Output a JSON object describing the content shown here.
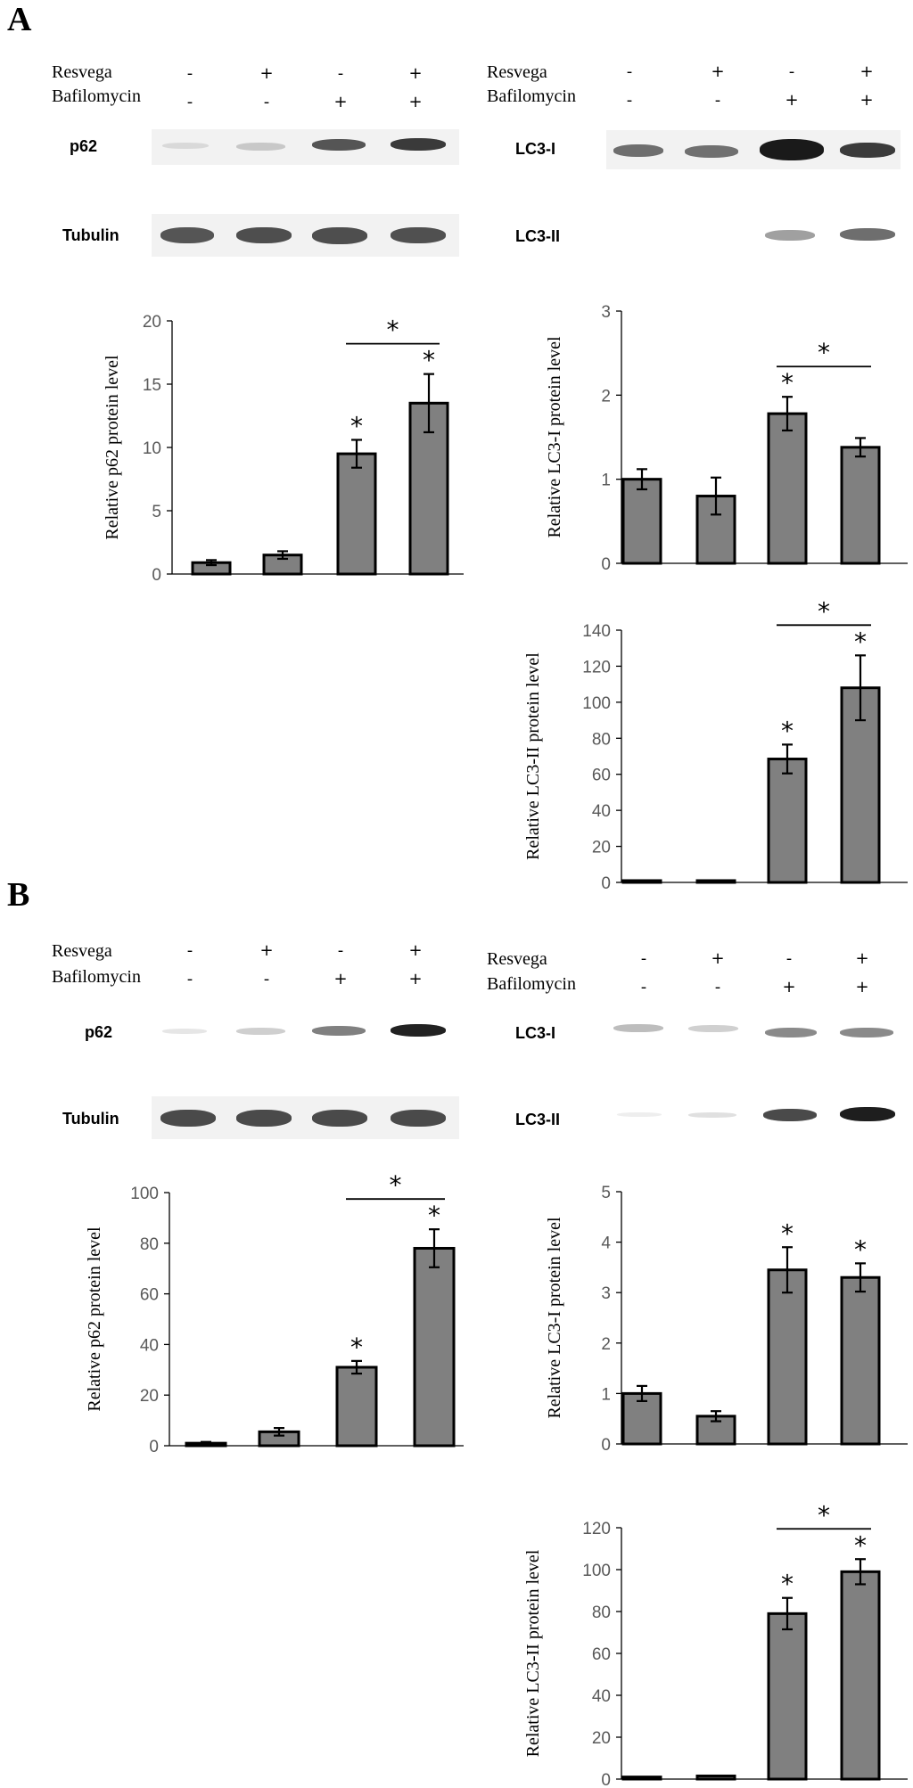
{
  "panels": [
    {
      "label": "A",
      "left": {
        "row1_label": "Resvega",
        "row1_signs": [
          "-",
          "+",
          "-",
          "+"
        ],
        "row2_label": "Bafilomycin",
        "row2_signs": [
          "-",
          "-",
          "+",
          "+"
        ],
        "blot_labels": [
          "p62",
          "Tubulin"
        ]
      },
      "right": {
        "row1_label": "Resvega",
        "row1_signs": [
          "-",
          "+",
          "-",
          "+"
        ],
        "row2_label": "Bafilomycin",
        "row2_signs": [
          "-",
          "-",
          "+",
          "+"
        ],
        "blot_labels": [
          "LC3-I",
          "LC3-II"
        ]
      }
    },
    {
      "label": "B",
      "left": {
        "row1_label": "Resvega",
        "row1_signs": [
          "-",
          "+",
          "-",
          "+"
        ],
        "row2_label": "Bafilomycin",
        "row2_signs": [
          "-",
          "-",
          "+",
          "+"
        ],
        "blot_labels": [
          "p62",
          "Tubulin"
        ]
      },
      "right": {
        "row1_label": "Resvega",
        "row1_signs": [
          "-",
          "+",
          "-",
          "+"
        ],
        "row2_label": "Bafilomycin",
        "row2_signs": [
          "-",
          "-",
          "+",
          "+"
        ],
        "blot_labels": [
          "LC3-I",
          "LC3-II"
        ]
      }
    }
  ],
  "colors": {
    "bar_fill": "#808080",
    "bar_stroke": "#000000",
    "axis": "#000000",
    "tick_text": "#595959"
  },
  "chart_data": [
    {
      "type": "bar",
      "panel": "A",
      "ylabel": "Relative p62 protein level",
      "ylim": [
        0,
        20
      ],
      "yticks": [
        0,
        5,
        10,
        15,
        20
      ],
      "values": [
        0.9,
        1.5,
        9.5,
        13.5
      ],
      "errors": [
        0.2,
        0.3,
        1.1,
        2.3
      ],
      "star_bars": [
        2,
        3
      ],
      "bracket": [
        2,
        3
      ],
      "bracket_star": "*"
    },
    {
      "type": "bar",
      "panel": "A",
      "ylabel": "Relative LC3-I protein level",
      "ylim": [
        0,
        3
      ],
      "yticks": [
        0,
        1,
        2,
        3
      ],
      "values": [
        1.0,
        0.8,
        1.78,
        1.38
      ],
      "errors": [
        0.12,
        0.22,
        0.2,
        0.11
      ],
      "star_bars": [
        2
      ],
      "bracket": [
        2,
        3
      ],
      "bracket_star": "*"
    },
    {
      "type": "bar",
      "panel": "A",
      "ylabel": "Relative LC3-II protein level",
      "ylim": [
        0,
        140
      ],
      "yticks": [
        0,
        20,
        40,
        60,
        80,
        100,
        120,
        140
      ],
      "values": [
        1,
        1,
        68.5,
        108
      ],
      "errors": [
        0,
        0,
        8,
        18
      ],
      "star_bars": [
        2,
        3
      ],
      "bracket": [
        2,
        3
      ],
      "bracket_star": "*"
    },
    {
      "type": "bar",
      "panel": "B",
      "ylabel": "Relative p62 protein level",
      "ylim": [
        0,
        100
      ],
      "yticks": [
        0,
        20,
        40,
        60,
        80,
        100
      ],
      "values": [
        1,
        5.5,
        31,
        78
      ],
      "errors": [
        0.5,
        1.5,
        2.5,
        7.5
      ],
      "star_bars": [
        2,
        3
      ],
      "bracket": [
        2,
        3
      ],
      "bracket_star": "*"
    },
    {
      "type": "bar",
      "panel": "B",
      "ylabel": "Relative LC3-I protein level",
      "ylim": [
        0,
        5
      ],
      "yticks": [
        0,
        1,
        2,
        3,
        4,
        5
      ],
      "values": [
        1.0,
        0.55,
        3.45,
        3.3
      ],
      "errors": [
        0.15,
        0.1,
        0.45,
        0.28
      ],
      "star_bars": [
        2,
        3
      ],
      "bracket": null,
      "bracket_star": null
    },
    {
      "type": "bar",
      "panel": "B",
      "ylabel": "Relative LC3-II protein level",
      "ylim": [
        0,
        120
      ],
      "yticks": [
        0,
        20,
        40,
        60,
        80,
        100,
        120
      ],
      "values": [
        1,
        1.5,
        79,
        99
      ],
      "errors": [
        0,
        0,
        7.5,
        6
      ],
      "star_bars": [
        2,
        3
      ],
      "bracket": [
        2,
        3
      ],
      "bracket_star": "*"
    }
  ]
}
